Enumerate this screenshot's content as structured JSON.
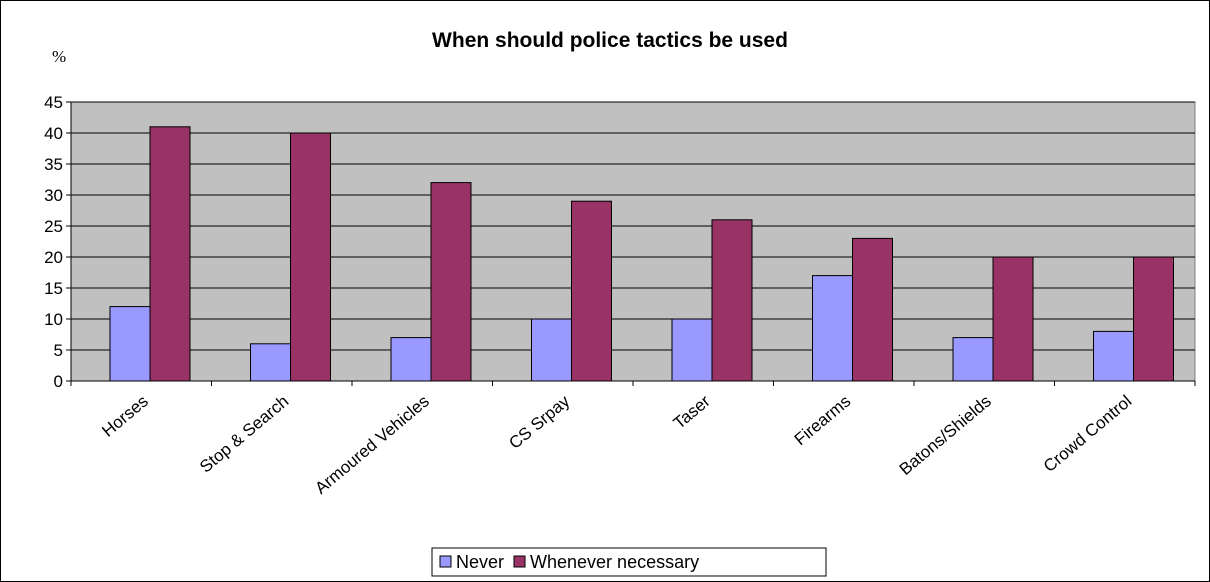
{
  "chart_data": {
    "type": "bar",
    "title": "When should police tactics be used",
    "ylabel": "%",
    "xlabel": "",
    "ylim": [
      0,
      45
    ],
    "yticks": [
      0,
      5,
      10,
      15,
      20,
      25,
      30,
      35,
      40,
      45
    ],
    "grid": true,
    "legend_position": "bottom",
    "categories": [
      "Horses",
      "Stop & Search",
      "Armoured Vehicles",
      "CS Srpay",
      "Taser",
      "Firearms",
      "Batons/Shields",
      "Crowd Control"
    ],
    "series": [
      {
        "name": "Never",
        "color": "#9999ff",
        "values": [
          12,
          6,
          7,
          10,
          10,
          17,
          7,
          8
        ]
      },
      {
        "name": "Whenever necessary",
        "color": "#993366",
        "values": [
          41,
          40,
          32,
          29,
          26,
          23,
          20,
          20
        ]
      }
    ],
    "plot_background": "#c0c0c0"
  }
}
